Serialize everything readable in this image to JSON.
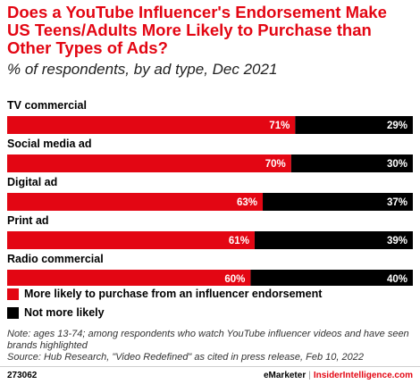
{
  "chart_data": {
    "type": "bar",
    "orientation": "horizontal",
    "stacked": true,
    "title": "Does a YouTube Influencer's Endorsement Make US Teens/Adults More Likely to Purchase than Other Types of Ads?",
    "subtitle": "% of respondents, by ad type, Dec 2021",
    "categories": [
      "TV commercial",
      "Social media ad",
      "Digital ad",
      "Print ad",
      "Radio commercial"
    ],
    "series": [
      {
        "name": "More likely to purchase from an influencer endorsement",
        "color": "#e30613",
        "values": [
          71,
          70,
          63,
          61,
          60
        ]
      },
      {
        "name": "Not more likely",
        "color": "#000000",
        "values": [
          29,
          30,
          37,
          39,
          40
        ]
      }
    ],
    "value_suffix": "%",
    "xlim": [
      0,
      100
    ],
    "grid": false,
    "legend_position": "bottom-left"
  },
  "legend": [
    {
      "label": "More likely to purchase from an influencer endorsement",
      "color": "#e30613"
    },
    {
      "label": "Not more likely",
      "color": "#000000"
    }
  ],
  "note": {
    "line1": "Note: ages 13-74; among respondents who watch YouTube influencer videos and have seen brands highlighted",
    "line2": "Source: Hub Research, \"Video Redefined\" as cited in press release, Feb 10, 2022"
  },
  "footer": {
    "chart_id": "273062",
    "brand_left": "eMarketer",
    "separator": "|",
    "brand_right": "InsiderIntelligence.com"
  }
}
